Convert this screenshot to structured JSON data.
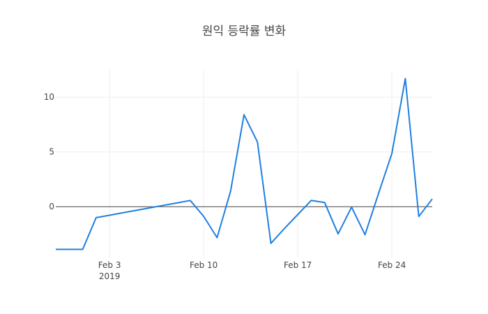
{
  "chart_data": {
    "type": "line",
    "title": "원익 등락률 변화",
    "xlabel": "",
    "ylabel": "",
    "x": [
      "2019-01-30",
      "2019-01-31",
      "2019-02-01",
      "2019-02-02",
      "2019-02-03",
      "2019-02-04",
      "2019-02-05",
      "2019-02-06",
      "2019-02-07",
      "2019-02-08",
      "2019-02-09",
      "2019-02-10",
      "2019-02-11",
      "2019-02-12",
      "2019-02-13",
      "2019-02-14",
      "2019-02-15",
      "2019-02-16",
      "2019-02-17",
      "2019-02-18",
      "2019-02-19",
      "2019-02-20",
      "2019-02-21",
      "2019-02-22",
      "2019-02-23",
      "2019-02-24",
      "2019-02-25",
      "2019-02-26",
      "2019-02-27"
    ],
    "series": [
      {
        "values": [
          -3.9,
          -3.9,
          -3.9,
          -1.0,
          -0.78,
          -0.55,
          -0.33,
          -0.11,
          0.12,
          0.34,
          0.57,
          -0.88,
          -2.83,
          1.4,
          8.4,
          5.9,
          -3.35,
          -2.0,
          -0.72,
          0.57,
          0.38,
          -2.48,
          -0.04,
          -2.55,
          1.2,
          4.85,
          11.7,
          -0.9,
          0.7
        ]
      }
    ],
    "x_ticks": [
      "Feb 3",
      "Feb 10",
      "Feb 17",
      "Feb 24"
    ],
    "x_tick_dates": [
      "2019-02-03",
      "2019-02-10",
      "2019-02-17",
      "2019-02-24"
    ],
    "x_year_label": "2019",
    "y_ticks": [
      0,
      5,
      10
    ],
    "xlim": [
      "2019-01-30",
      "2019-02-27"
    ],
    "ylim": [
      -4.7,
      12.5
    ],
    "grid": true,
    "legend": "none",
    "line_color": "#1f7fe0",
    "grid_color": "#eeeeee",
    "zero_line_color": "#444444"
  }
}
